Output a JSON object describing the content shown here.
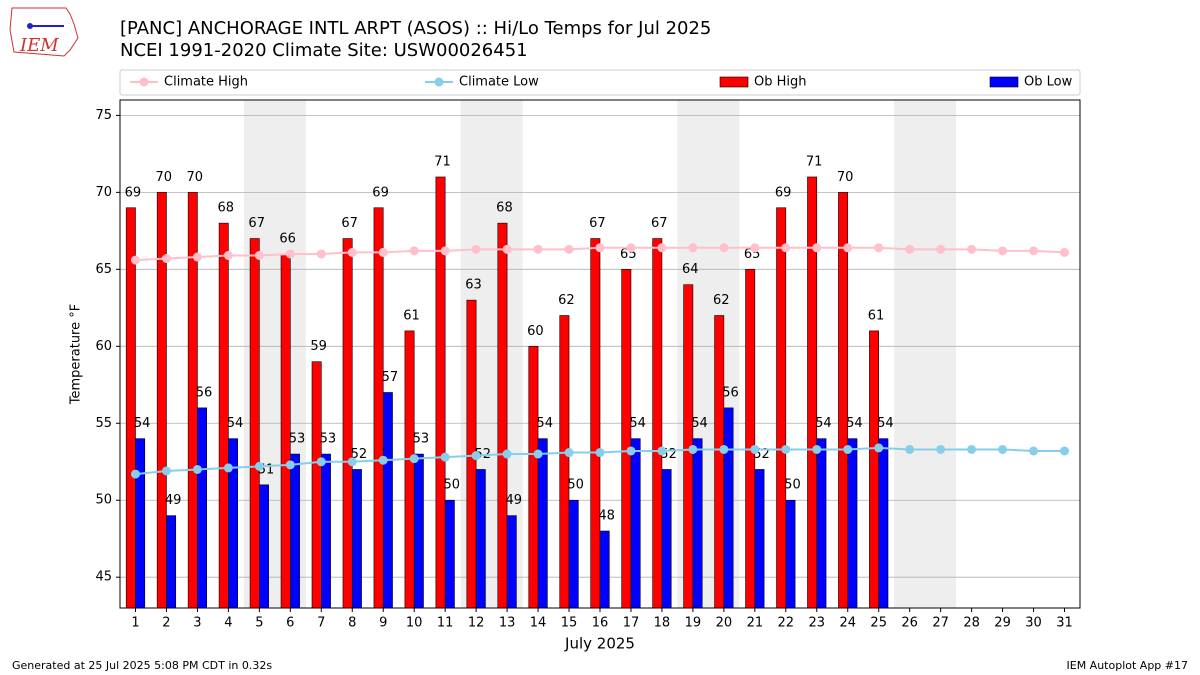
{
  "chart_data": {
    "type": "bar",
    "title": "[PANC] ANCHORAGE INTL ARPT (ASOS) :: Hi/Lo Temps for Jul 2025",
    "subtitle": "NCEI 1991-2020 Climate Site: USW00026451",
    "logo_text": "IEM",
    "xlabel": "July 2025",
    "ylabel": "Temperature °F",
    "footer_left": "Generated at 25 Jul 2025 5:08 PM CDT in 0.32s",
    "footer_right": "IEM Autoplot App #17",
    "x": [
      1,
      2,
      3,
      4,
      5,
      6,
      7,
      8,
      9,
      10,
      11,
      12,
      13,
      14,
      15,
      16,
      17,
      18,
      19,
      20,
      21,
      22,
      23,
      24,
      25,
      26,
      27,
      28,
      29,
      30,
      31
    ],
    "xlim": [
      0.5,
      31.5
    ],
    "xticks": [
      1,
      2,
      3,
      4,
      5,
      6,
      7,
      8,
      9,
      10,
      11,
      12,
      13,
      14,
      15,
      16,
      17,
      18,
      19,
      20,
      21,
      22,
      23,
      24,
      25,
      26,
      27,
      28,
      29,
      30,
      31
    ],
    "ylim": [
      43,
      76
    ],
    "yticks": [
      45,
      50,
      55,
      60,
      65,
      70,
      75
    ],
    "grid": true,
    "series": [
      {
        "name": "Climate High",
        "kind": "line",
        "color": "#ffc0cb",
        "values": [
          65.6,
          65.7,
          65.8,
          65.9,
          65.9,
          66.0,
          66.0,
          66.1,
          66.1,
          66.2,
          66.2,
          66.3,
          66.3,
          66.3,
          66.3,
          66.4,
          66.4,
          66.4,
          66.4,
          66.4,
          66.4,
          66.4,
          66.4,
          66.4,
          66.4,
          66.3,
          66.3,
          66.3,
          66.2,
          66.2,
          66.1
        ]
      },
      {
        "name": "Climate Low",
        "kind": "line",
        "color": "#87ceeb",
        "values": [
          51.7,
          51.9,
          52.0,
          52.1,
          52.2,
          52.3,
          52.5,
          52.5,
          52.6,
          52.7,
          52.8,
          52.9,
          53.0,
          53.0,
          53.1,
          53.1,
          53.2,
          53.2,
          53.3,
          53.3,
          53.3,
          53.3,
          53.3,
          53.3,
          53.4,
          53.3,
          53.3,
          53.3,
          53.3,
          53.2,
          53.2
        ]
      },
      {
        "name": "Ob High",
        "kind": "bar",
        "color": "#ff0000",
        "values": [
          69,
          70,
          70,
          68,
          67,
          66,
          59,
          67,
          69,
          61,
          71,
          63,
          68,
          60,
          62,
          67,
          65,
          67,
          64,
          62,
          65,
          69,
          71,
          70,
          61,
          null,
          null,
          null,
          null,
          null,
          null
        ]
      },
      {
        "name": "Ob Low",
        "kind": "bar",
        "color": "#0000ff",
        "values": [
          54,
          49,
          56,
          54,
          51,
          53,
          53,
          52,
          57,
          53,
          50,
          52,
          49,
          54,
          50,
          48,
          54,
          52,
          54,
          56,
          52,
          50,
          54,
          54,
          54,
          null,
          null,
          null,
          null,
          null,
          null
        ]
      }
    ]
  }
}
